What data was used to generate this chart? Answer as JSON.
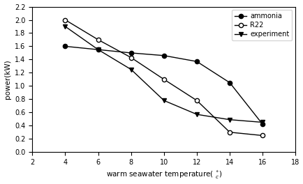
{
  "ammonia_x": [
    4,
    6,
    8,
    10,
    12,
    14,
    16
  ],
  "ammonia_y": [
    1.6,
    1.55,
    1.5,
    1.46,
    1.37,
    1.05,
    0.42
  ],
  "R22_x": [
    4,
    6,
    8,
    10,
    12,
    14,
    16
  ],
  "R22_y": [
    2.0,
    1.7,
    1.43,
    1.1,
    0.78,
    0.3,
    0.25
  ],
  "experiment_x": [
    4,
    6,
    8,
    10,
    12,
    14,
    16
  ],
  "experiment_y": [
    1.9,
    1.55,
    1.25,
    0.78,
    0.57,
    0.49,
    0.45
  ],
  "ylabel": "power(kW)",
  "xlim": [
    2,
    18
  ],
  "ylim": [
    0.0,
    2.2
  ],
  "xticks": [
    2,
    4,
    6,
    8,
    10,
    12,
    14,
    16,
    18
  ],
  "yticks": [
    0.0,
    0.2,
    0.4,
    0.6,
    0.8,
    1.0,
    1.2,
    1.4,
    1.6,
    1.8,
    2.0,
    2.2
  ],
  "legend_labels": [
    "ammonia",
    "R22",
    "experiment"
  ],
  "line_color": "black",
  "figsize": [
    4.35,
    2.64
  ],
  "dpi": 100
}
